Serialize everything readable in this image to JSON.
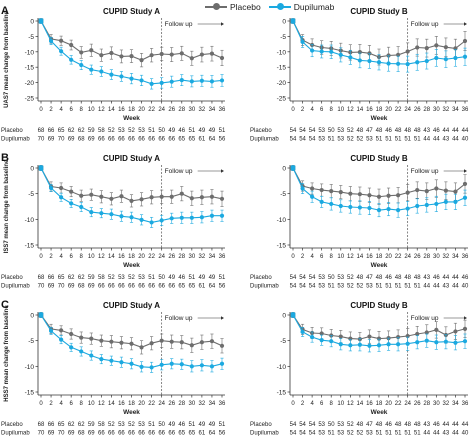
{
  "legend": [
    {
      "name": "Placebo",
      "color": "#6d6d6d"
    },
    {
      "name": "Dupilumab",
      "color": "#1ba9e0"
    }
  ],
  "week_label": "Week",
  "followup_label": "Follow up",
  "row_labels": [
    "Placebo",
    "Dupilumab"
  ],
  "chart_data": [
    {
      "panel": "A",
      "title": "CUPID Study A",
      "type": "line",
      "ylabel": "UAS7 mean change from baseline",
      "ylim": [
        -25,
        0
      ],
      "yticks": [
        0,
        -5,
        -10,
        -15,
        -20,
        -25
      ],
      "x": [
        0,
        2,
        4,
        6,
        8,
        10,
        12,
        14,
        16,
        18,
        20,
        22,
        24,
        26,
        28,
        30,
        32,
        34,
        36
      ],
      "followup_start": 24,
      "series": [
        {
          "name": "Placebo",
          "color": "#6d6d6d",
          "values": [
            0,
            -5.8,
            -6.4,
            -7.8,
            -10.2,
            -9.5,
            -11.1,
            -10.4,
            -11.5,
            -11.4,
            -12.7,
            -11.1,
            -10.7,
            -10.9,
            -10.5,
            -12.1,
            -10.9,
            -10.6,
            -12.0
          ],
          "err": [
            0.8,
            1.4,
            1.5,
            1.6,
            1.9,
            2.0,
            2.0,
            2.0,
            2.1,
            2.1,
            2.2,
            2.2,
            2.2,
            2.3,
            2.3,
            2.3,
            2.4,
            2.4,
            2.5
          ]
        },
        {
          "name": "Dupilumab",
          "color": "#1ba9e0",
          "values": [
            0,
            -6.5,
            -9.8,
            -12.6,
            -14.3,
            -15.8,
            -16.4,
            -17.4,
            -18.0,
            -18.7,
            -19.3,
            -20.4,
            -20.1,
            -19.7,
            -19.2,
            -19.6,
            -19.4,
            -19.6,
            -19.3
          ],
          "err": [
            0.8,
            1.2,
            1.3,
            1.4,
            1.5,
            1.5,
            1.6,
            1.6,
            1.6,
            1.7,
            1.7,
            1.7,
            1.7,
            1.8,
            1.8,
            1.8,
            1.8,
            1.9,
            1.9
          ]
        }
      ],
      "n_at_risk": [
        [
          "68",
          "66",
          "65",
          "62",
          "62",
          "59",
          "58",
          "52",
          "53",
          "52",
          "53",
          "51",
          "50",
          "49",
          "46",
          "51",
          "49",
          "49",
          "51"
        ],
        [
          "70",
          "69",
          "70",
          "69",
          "68",
          "69",
          "66",
          "66",
          "66",
          "66",
          "66",
          "66",
          "66",
          "66",
          "65",
          "65",
          "61",
          "64",
          "56"
        ]
      ]
    },
    {
      "panel": "",
      "title": "CUPID Study B",
      "type": "line",
      "ylabel": "",
      "ylim": [
        -25,
        0
      ],
      "yticks": [
        0,
        -5,
        -10,
        -15,
        -20,
        -25
      ],
      "x": [
        0,
        2,
        4,
        6,
        8,
        10,
        12,
        14,
        16,
        18,
        20,
        22,
        24,
        26,
        28,
        30,
        32,
        34,
        36
      ],
      "followup_start": 24,
      "series": [
        {
          "name": "Placebo",
          "color": "#6d6d6d",
          "values": [
            0,
            -6.2,
            -7.8,
            -8.6,
            -8.9,
            -9.6,
            -10.2,
            -10.1,
            -10.5,
            -11.7,
            -11.2,
            -11.0,
            -9.9,
            -8.6,
            -8.8,
            -7.9,
            -8.5,
            -8.9,
            -6.5
          ],
          "err": [
            0.8,
            1.8,
            2.0,
            2.2,
            2.3,
            2.4,
            2.5,
            2.5,
            2.6,
            2.6,
            2.7,
            2.7,
            2.8,
            2.8,
            2.9,
            2.9,
            3.0,
            3.0,
            3.1
          ]
        },
        {
          "name": "Dupilumab",
          "color": "#1ba9e0",
          "values": [
            0,
            -6.8,
            -9.6,
            -9.9,
            -10.0,
            -11.0,
            -11.8,
            -12.8,
            -13.0,
            -13.4,
            -13.8,
            -13.9,
            -14.0,
            -13.4,
            -13.0,
            -12.0,
            -12.4,
            -12.0,
            -11.6
          ],
          "err": [
            0.8,
            1.8,
            2.0,
            2.1,
            2.2,
            2.3,
            2.3,
            2.4,
            2.4,
            2.5,
            2.5,
            2.5,
            2.6,
            2.6,
            2.6,
            2.7,
            2.7,
            2.7,
            2.8
          ]
        }
      ],
      "n_at_risk": [
        [
          "54",
          "54",
          "54",
          "53",
          "50",
          "53",
          "52",
          "48",
          "47",
          "48",
          "46",
          "48",
          "48",
          "48",
          "43",
          "46",
          "44",
          "44",
          "44"
        ],
        [
          "54",
          "54",
          "54",
          "53",
          "51",
          "53",
          "52",
          "52",
          "53",
          "51",
          "51",
          "51",
          "51",
          "51",
          "44",
          "44",
          "43",
          "44",
          "40"
        ]
      ]
    },
    {
      "panel": "B",
      "title": "CUPID Study A",
      "type": "line",
      "ylabel": "ISS7 mean change from baseline",
      "ylim": [
        -15,
        0
      ],
      "yticks": [
        0,
        -5,
        -10,
        -15
      ],
      "x": [
        0,
        2,
        4,
        6,
        8,
        10,
        12,
        14,
        16,
        18,
        20,
        22,
        24,
        26,
        28,
        30,
        32,
        34,
        36
      ],
      "followup_start": 24,
      "series": [
        {
          "name": "Placebo",
          "color": "#6d6d6d",
          "values": [
            0,
            -3.6,
            -3.9,
            -4.6,
            -5.4,
            -5.2,
            -5.6,
            -6.0,
            -5.5,
            -6.4,
            -6.1,
            -5.7,
            -5.6,
            -5.6,
            -5.0,
            -5.9,
            -5.7,
            -5.6,
            -6.0
          ],
          "err": [
            0.5,
            0.9,
            1.0,
            1.0,
            1.1,
            1.1,
            1.2,
            1.2,
            1.2,
            1.2,
            1.3,
            1.3,
            1.3,
            1.3,
            1.4,
            1.4,
            1.4,
            1.4,
            1.5
          ]
        },
        {
          "name": "Dupilumab",
          "color": "#1ba9e0",
          "values": [
            0,
            -3.9,
            -5.7,
            -6.9,
            -7.6,
            -8.6,
            -8.8,
            -9.0,
            -9.4,
            -9.6,
            -10.1,
            -10.6,
            -10.2,
            -9.8,
            -9.7,
            -9.7,
            -9.6,
            -9.3,
            -9.3
          ],
          "err": [
            0.5,
            0.7,
            0.8,
            0.8,
            0.9,
            0.9,
            0.9,
            1.0,
            1.0,
            1.0,
            1.0,
            1.0,
            1.0,
            1.0,
            1.1,
            1.1,
            1.1,
            1.1,
            1.1
          ]
        }
      ],
      "n_at_risk": [
        [
          "68",
          "66",
          "65",
          "62",
          "62",
          "59",
          "58",
          "52",
          "53",
          "52",
          "53",
          "51",
          "50",
          "49",
          "46",
          "51",
          "49",
          "49",
          "51"
        ],
        [
          "70",
          "69",
          "70",
          "69",
          "68",
          "69",
          "66",
          "66",
          "66",
          "66",
          "66",
          "66",
          "66",
          "66",
          "65",
          "65",
          "61",
          "64",
          "56"
        ]
      ]
    },
    {
      "panel": "",
      "title": "CUPID Study B",
      "type": "line",
      "ylabel": "",
      "ylim": [
        -15,
        0
      ],
      "yticks": [
        0,
        -5,
        -10,
        -15
      ],
      "x": [
        0,
        2,
        4,
        6,
        8,
        10,
        12,
        14,
        16,
        18,
        20,
        22,
        24,
        26,
        28,
        30,
        32,
        34,
        36
      ],
      "followup_start": 24,
      "series": [
        {
          "name": "Placebo",
          "color": "#6d6d6d",
          "values": [
            0,
            -3.5,
            -4.0,
            -4.3,
            -4.5,
            -4.7,
            -5.0,
            -5.1,
            -5.3,
            -5.6,
            -5.4,
            -5.3,
            -4.8,
            -4.3,
            -4.5,
            -4.0,
            -4.4,
            -4.6,
            -3.1
          ],
          "err": [
            0.5,
            1.0,
            1.1,
            1.2,
            1.3,
            1.3,
            1.4,
            1.4,
            1.4,
            1.5,
            1.5,
            1.5,
            1.6,
            1.6,
            1.6,
            1.7,
            1.7,
            1.7,
            1.8
          ]
        },
        {
          "name": "Dupilumab",
          "color": "#1ba9e0",
          "values": [
            0,
            -4.0,
            -5.6,
            -6.6,
            -7.0,
            -7.4,
            -7.6,
            -7.7,
            -7.8,
            -8.2,
            -8.0,
            -8.2,
            -7.9,
            -7.4,
            -7.2,
            -7.0,
            -6.6,
            -6.6,
            -5.8
          ],
          "err": [
            0.5,
            1.0,
            1.1,
            1.1,
            1.2,
            1.2,
            1.2,
            1.3,
            1.3,
            1.3,
            1.3,
            1.4,
            1.4,
            1.4,
            1.4,
            1.5,
            1.5,
            1.5,
            1.5
          ]
        }
      ],
      "n_at_risk": [
        [
          "54",
          "54",
          "54",
          "53",
          "50",
          "53",
          "52",
          "48",
          "47",
          "48",
          "46",
          "48",
          "48",
          "48",
          "43",
          "46",
          "44",
          "44",
          "46"
        ],
        [
          "54",
          "54",
          "54",
          "53",
          "51",
          "53",
          "52",
          "52",
          "53",
          "51",
          "51",
          "51",
          "51",
          "51",
          "44",
          "44",
          "43",
          "44",
          "40"
        ]
      ]
    },
    {
      "panel": "C",
      "title": "CUPID Study A",
      "type": "line",
      "ylabel": "HSS7 mean change from baseline",
      "ylim": [
        -15,
        0
      ],
      "yticks": [
        0,
        -5,
        -10,
        -15
      ],
      "x": [
        0,
        2,
        4,
        6,
        8,
        10,
        12,
        14,
        16,
        18,
        20,
        22,
        24,
        26,
        28,
        30,
        32,
        34,
        36
      ],
      "followup_start": 24,
      "series": [
        {
          "name": "Placebo",
          "color": "#6d6d6d",
          "values": [
            0,
            -2.7,
            -3.0,
            -3.7,
            -4.4,
            -4.6,
            -5.0,
            -5.2,
            -5.4,
            -5.6,
            -6.3,
            -5.5,
            -5.0,
            -5.2,
            -5.3,
            -5.9,
            -5.3,
            -5.1,
            -6.0
          ],
          "err": [
            0.5,
            0.9,
            0.9,
            1.0,
            1.1,
            1.1,
            1.1,
            1.2,
            1.2,
            1.2,
            1.3,
            1.3,
            1.3,
            1.3,
            1.3,
            1.4,
            1.4,
            1.4,
            1.4
          ]
        },
        {
          "name": "Dupilumab",
          "color": "#1ba9e0",
          "values": [
            0,
            -3.1,
            -4.8,
            -6.3,
            -7.1,
            -7.9,
            -8.6,
            -8.9,
            -9.2,
            -9.5,
            -10.1,
            -10.2,
            -9.7,
            -9.5,
            -9.6,
            -10.0,
            -9.8,
            -10.0,
            -9.5
          ],
          "err": [
            0.5,
            0.7,
            0.8,
            0.8,
            0.9,
            0.9,
            0.9,
            0.9,
            1.0,
            1.0,
            1.0,
            1.0,
            1.0,
            1.0,
            1.0,
            1.1,
            1.1,
            1.1,
            1.1
          ]
        }
      ],
      "n_at_risk": [
        [
          "68",
          "66",
          "65",
          "62",
          "62",
          "59",
          "58",
          "52",
          "53",
          "52",
          "53",
          "51",
          "50",
          "49",
          "46",
          "51",
          "49",
          "49",
          "51"
        ],
        [
          "70",
          "69",
          "70",
          "69",
          "68",
          "69",
          "66",
          "66",
          "66",
          "66",
          "66",
          "66",
          "66",
          "66",
          "65",
          "65",
          "61",
          "64",
          "56"
        ]
      ]
    },
    {
      "panel": "",
      "title": "CUPID Study B",
      "type": "line",
      "ylabel": "",
      "ylim": [
        -15,
        0
      ],
      "yticks": [
        0,
        -5,
        -10,
        -15
      ],
      "x": [
        0,
        2,
        4,
        6,
        8,
        10,
        12,
        14,
        16,
        18,
        20,
        22,
        24,
        26,
        28,
        30,
        32,
        34,
        36
      ],
      "followup_start": 24,
      "series": [
        {
          "name": "Placebo",
          "color": "#6d6d6d",
          "values": [
            0,
            -2.8,
            -3.5,
            -3.6,
            -4.0,
            -4.2,
            -4.6,
            -4.7,
            -4.2,
            -4.6,
            -4.5,
            -4.3,
            -4.1,
            -3.7,
            -3.4,
            -2.9,
            -3.9,
            -3.2,
            -2.7
          ],
          "err": [
            0.5,
            1.0,
            1.1,
            1.1,
            1.2,
            1.2,
            1.3,
            1.3,
            1.3,
            1.4,
            1.4,
            1.4,
            1.5,
            1.5,
            1.5,
            1.6,
            1.6,
            1.6,
            1.7
          ]
        },
        {
          "name": "Dupilumab",
          "color": "#1ba9e0",
          "values": [
            0,
            -3.3,
            -4.3,
            -4.9,
            -5.1,
            -5.7,
            -5.9,
            -5.8,
            -6.0,
            -5.9,
            -5.7,
            -5.7,
            -5.6,
            -5.3,
            -5.0,
            -5.3,
            -5.2,
            -5.4,
            -5.1
          ],
          "err": [
            0.5,
            0.9,
            1.0,
            1.0,
            1.1,
            1.1,
            1.1,
            1.2,
            1.2,
            1.2,
            1.2,
            1.3,
            1.3,
            1.3,
            1.3,
            1.4,
            1.4,
            1.4,
            1.4
          ]
        }
      ],
      "n_at_risk": [
        [
          "54",
          "54",
          "54",
          "53",
          "50",
          "53",
          "52",
          "48",
          "47",
          "48",
          "46",
          "48",
          "48",
          "48",
          "43",
          "46",
          "44",
          "44",
          "44"
        ],
        [
          "54",
          "54",
          "54",
          "53",
          "51",
          "53",
          "52",
          "52",
          "53",
          "51",
          "51",
          "51",
          "51",
          "51",
          "44",
          "44",
          "43",
          "44",
          "40"
        ]
      ]
    }
  ]
}
